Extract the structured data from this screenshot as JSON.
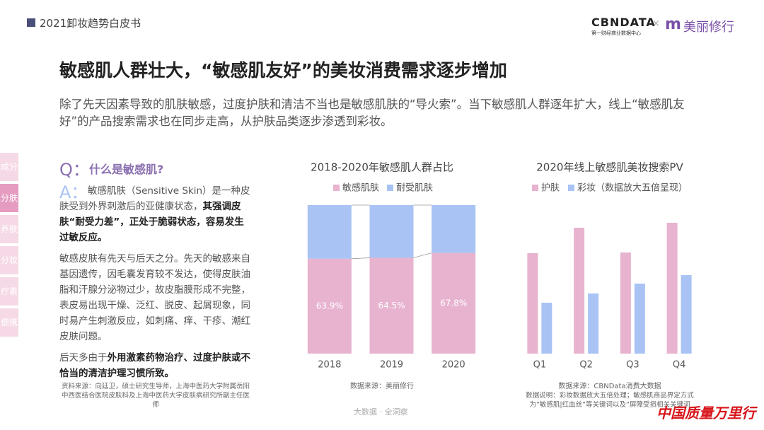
{
  "header": {
    "report": "2021卸妆趋势白皮书",
    "logo_main": "CBNDATA",
    "logo_sub": "第一财经商业数据中心",
    "logo_x": "×",
    "partner": "美丽修行"
  },
  "title": "敏感肌人群壮大，“敏感肌友好”的美妆消费需求逐步增加",
  "intro": "除了先天因素导致的肌肤敏感，过度护肤和清洁不当也是敏感肌肤的“导火索”。当下敏感肌人群逐年扩大，线上“敏感肌友好”的产品搜索需求也在同步走高，从护肤品类逐步渗透到彩妆。",
  "tabs": [
    {
      "label": "成分",
      "active": false
    },
    {
      "label": "分肤",
      "active": true
    },
    {
      "label": "养肤",
      "active": false
    },
    {
      "label": "分妆",
      "active": false
    },
    {
      "label": "疗素",
      "active": false
    },
    {
      "label": "便携",
      "active": false
    }
  ],
  "qa": {
    "q_mark": "Q：",
    "question": "什么是敏感肌?",
    "a_mark": "A：",
    "paragraphs": [
      [
        {
          "text": "敏感肌肤（Sensitive Skin）是一种皮肤受到外界刺激后的亚健康状态，",
          "bold": false
        },
        {
          "text": "其强调皮肤“耐受力差”，正处于脆弱状态，容易发生过敏反应。",
          "bold": true
        }
      ],
      [
        {
          "text": "敏感皮肤有先天与后天之分。先天的敏感来自基因遗传，因毛囊发育较不发达，使得皮肤油脂和汗腺分泌物过少，故皮脂膜形成不完整，表皮易出现干燥、泛红、脱皮、起屑现象，同时易产生刺激反应，如刺痛、痒、干疹、潮红皮肤问题。",
          "bold": false
        }
      ],
      [
        {
          "text": "后天多由于",
          "bold": false
        },
        {
          "text": "外用激素药物治疗、过度护肤或不恰当的清洁护理习惯所致。",
          "bold": true
        }
      ]
    ],
    "source": "资料来源：向廷卫，硕士研究生导师，上海中医药大学附属岳阳中西医结合医院皮肤科及上海中医药大学皮肤病研究所副主任医师"
  },
  "chart_data": [
    {
      "type": "bar",
      "stacked": true,
      "title": "2018-2020年敏感肌人群占比",
      "categories": [
        "2018",
        "2019",
        "2020"
      ],
      "series": [
        {
          "name": "敏感肌肤",
          "color": "#e8b3cf",
          "values": [
            63.9,
            64.5,
            67.8
          ],
          "value_labels": [
            "63.9%",
            "64.5%",
            "67.8%"
          ]
        },
        {
          "name": "耐受肌肤",
          "color": "#a9c3f4",
          "values": [
            36.1,
            35.5,
            32.2
          ]
        }
      ],
      "ylim": [
        0,
        100
      ],
      "source": "数据来源：美丽修行"
    },
    {
      "type": "bar",
      "stacked": false,
      "title": "2020年线上敏感肌美妆搜索PV",
      "categories": [
        "Q1",
        "Q2",
        "Q3",
        "Q4"
      ],
      "series": [
        {
          "name": "护肤",
          "color": "#e8b3cf",
          "values": [
            142,
            178,
            143,
            185
          ]
        },
        {
          "name": "彩妆（数据放大五倍呈现）",
          "color": "#a9c3f4",
          "values": [
            72,
            85,
            99,
            111
          ]
        }
      ],
      "ylim": [
        0,
        200
      ],
      "source": "数据来源：CBNData消费大数据",
      "note": "数据说明：彩妆数据放大五倍处理；敏感肌商品界定方式为“敏感肌|红血丝”等关键词以及“屏障受损相关关键词"
    }
  ],
  "footer": {
    "slogan": "大数据 · 全洞察",
    "watermark": "中国质量万里行"
  }
}
